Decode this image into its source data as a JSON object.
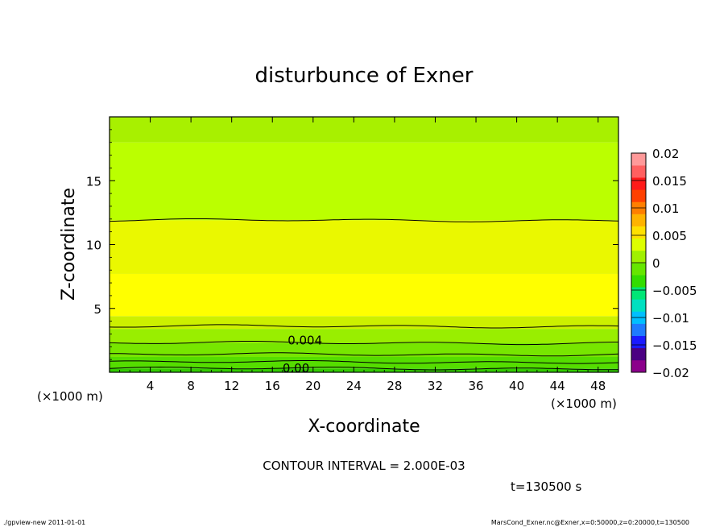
{
  "chart_data": {
    "type": "heatmap",
    "title": "disturbunce of Exner",
    "xlabel": "X-coordinate",
    "ylabel": "Z-coordinate",
    "x_unit_left": "(×1000 m)",
    "x_unit_right": "(×1000 m)",
    "xlim": [
      0,
      50
    ],
    "ylim": [
      0,
      20
    ],
    "xticks": [
      4,
      8,
      12,
      16,
      20,
      24,
      28,
      32,
      36,
      40,
      44,
      48
    ],
    "xtick_labels": [
      "4",
      "8",
      "12",
      "16",
      "20",
      "24",
      "28",
      "32",
      "36",
      "40",
      "44",
      "48"
    ],
    "yticks": [
      5,
      10,
      15
    ],
    "ytick_labels": [
      "5",
      "10",
      "15"
    ],
    "contour_interval_text": "CONTOUR INTERVAL = 2.000E-03",
    "time_text": "t=130500 s",
    "contour_labels": [
      {
        "text": "0.004",
        "x": 17.5,
        "y": 2.5
      },
      {
        "text": "0.00",
        "x": 17.0,
        "y": 0.3
      }
    ],
    "bands": [
      {
        "z0": 0.0,
        "z1": 0.3,
        "color": "#33cc00"
      },
      {
        "z0": 0.3,
        "z1": 1.2,
        "color": "#55dd00"
      },
      {
        "z0": 1.2,
        "z1": 2.3,
        "color": "#77e600"
      },
      {
        "z0": 2.3,
        "z1": 3.4,
        "color": "#99ee00"
      },
      {
        "z0": 3.4,
        "z1": 4.4,
        "color": "#ccf000"
      },
      {
        "z0": 4.4,
        "z1": 7.7,
        "color": "#ffff00"
      },
      {
        "z0": 7.7,
        "z1": 11.9,
        "color": "#eaf800"
      },
      {
        "z0": 11.9,
        "z1": 18.0,
        "color": "#bbff00"
      },
      {
        "z0": 18.0,
        "z1": 20.0,
        "color": "#a8f000"
      }
    ],
    "contours_z": [
      0.3,
      0.8,
      1.4,
      2.3,
      3.6,
      11.9
    ],
    "colorbar": {
      "tick_labels": [
        "0.02",
        "0.015",
        "0.01",
        "0.005",
        "0",
        "−0.005",
        "−0.01",
        "−0.015",
        "−0.02"
      ],
      "colors": [
        "#8b008b",
        "#4b0082",
        "#1a1aff",
        "#1e7bff",
        "#00bfff",
        "#00e0c0",
        "#00e676",
        "#33dd00",
        "#66e600",
        "#a0f000",
        "#ddff00",
        "#ffe000",
        "#ffb300",
        "#ff7f00",
        "#ff4000",
        "#ff1a1a",
        "#ff6060",
        "#ff9999"
      ]
    }
  },
  "footer": {
    "left": "./gpview-new   2011-01-01",
    "right": "MarsCond_Exner.nc@Exner,x=0:50000,z=0:20000,t=130500"
  }
}
